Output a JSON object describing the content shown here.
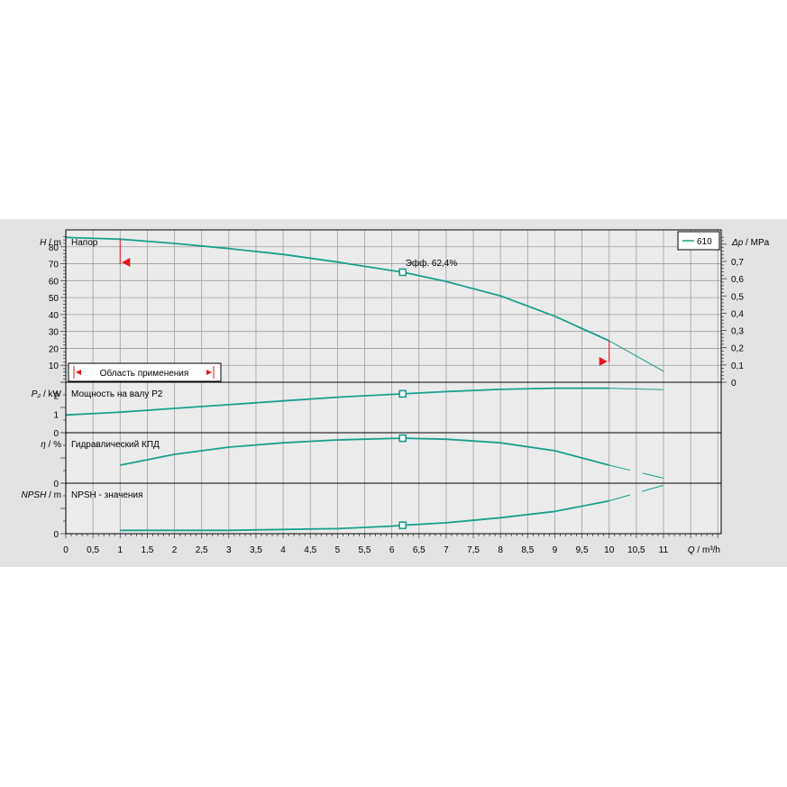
{
  "chart_data": {
    "type": "line",
    "x_axis": {
      "label_var": "Q",
      "label_unit": " / m³/h",
      "range": [
        0,
        12
      ],
      "ticks": [
        "0",
        "0,5",
        "1",
        "1,5",
        "2",
        "2,5",
        "3",
        "3,5",
        "4",
        "4,5",
        "5",
        "5,5",
        "6",
        "6,5",
        "7",
        "7,5",
        "8",
        "8,5",
        "9",
        "9,5",
        "10",
        "10,5",
        "11"
      ]
    },
    "legend": {
      "entries": [
        "610"
      ],
      "position": "top-right"
    },
    "duty_point": {
      "x": 6.2
    },
    "panels": [
      {
        "id": "head",
        "title": "Напор",
        "y_var": "H",
        "y_unit": " / m",
        "y_range": [
          0,
          90
        ],
        "y_ticks": [
          "10",
          "20",
          "30",
          "40",
          "50",
          "60",
          "70",
          "80"
        ],
        "right_axis": {
          "var": "Δp",
          "unit": " / MPa",
          "ticks": [
            "0",
            "0,1",
            "0,2",
            "0,3",
            "0,4",
            "0,5",
            "0,6",
            "0,7"
          ],
          "tick_values": [
            0,
            0.1,
            0.2,
            0.3,
            0.4,
            0.5,
            0.6,
            0.7
          ],
          "mpa_per_m": 0.00981
        },
        "annotation": "Эфф.  62,4%",
        "application_range_label": "Область применения",
        "application_range": [
          1.0,
          10.0
        ],
        "series": [
          {
            "name": "610",
            "x": [
              0,
              1,
              2,
              3,
              4,
              5,
              6,
              6.2,
              7,
              8,
              9,
              10
            ],
            "y": [
              85.5,
              84.5,
              82,
              79,
              75.5,
              71,
              66,
              65,
              59.5,
              51,
              39,
              24.5
            ]
          },
          {
            "name": "610-ext",
            "x": [
              10,
              11
            ],
            "y": [
              24.5,
              6.5
            ]
          }
        ]
      },
      {
        "id": "power",
        "title": "Мощность на валу P2",
        "y_var": "P₂",
        "y_unit": " / kW",
        "y_range": [
          0,
          2.7
        ],
        "y_ticks": [
          "0",
          "1",
          "2"
        ],
        "series": [
          {
            "name": "610",
            "x": [
              0,
              1,
              2,
              3,
              4,
              5,
              6,
              6.2,
              7,
              8,
              9,
              10
            ],
            "y": [
              0.95,
              1.1,
              1.3,
              1.5,
              1.7,
              1.9,
              2.05,
              2.08,
              2.2,
              2.32,
              2.38,
              2.38
            ]
          },
          {
            "name": "610-ext",
            "x": [
              10,
              11
            ],
            "y": [
              2.38,
              2.3
            ]
          }
        ]
      },
      {
        "id": "eff",
        "title": "Гидравлический КПД",
        "y_var": "η",
        "y_unit": " / %",
        "y_range": [
          0,
          70
        ],
        "y_ticks": [
          "0"
        ],
        "series": [
          {
            "name": "610",
            "x": [
              1,
              2,
              3,
              4,
              5,
              6,
              6.2,
              7,
              8,
              9,
              10
            ],
            "y": [
              25,
              40,
              50,
              56,
              60,
              62,
              62.4,
              61,
              56,
              45,
              25
            ]
          },
          {
            "name": "610-ext",
            "x": [
              10,
              11
            ],
            "y": [
              25,
              7
            ],
            "dashed": true
          }
        ]
      },
      {
        "id": "npsh",
        "title": "NPSH - значения",
        "y_var": "NPSH",
        "y_unit": " / m",
        "y_range": [
          0,
          12
        ],
        "y_ticks": [
          "0"
        ],
        "series": [
          {
            "name": "610",
            "x": [
              1,
              2,
              3,
              4,
              5,
              6,
              6.2,
              7,
              8,
              9,
              10
            ],
            "y": [
              0.8,
              0.8,
              0.8,
              1,
              1.2,
              1.8,
              2,
              2.6,
              3.8,
              5.3,
              7.8
            ]
          },
          {
            "name": "610-ext",
            "x": [
              10,
              11
            ],
            "y": [
              7.8,
              11.5
            ],
            "dashed": true
          }
        ]
      }
    ],
    "colors": {
      "curve": "#1b9e8c",
      "range": "#e8141b",
      "grid": "#9f9f9f",
      "plot_bg": "#ebebeb",
      "outer_bg": "#e3e3e3"
    }
  }
}
